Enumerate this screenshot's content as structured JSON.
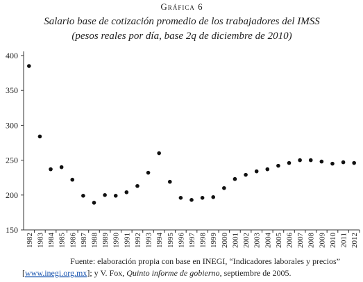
{
  "chart_data": {
    "type": "scatter",
    "label": "Gráfica 6",
    "title": "Salario base de cotización promedio de los trabajadores del IMSS",
    "subtitle": "(pesos reales por día, base 2q de diciembre de 2010)",
    "categories": [
      "1982",
      "1983",
      "1984",
      "1985",
      "1986",
      "1987",
      "1988",
      "1989",
      "1990",
      "1991",
      "1992",
      "1993",
      "1994",
      "1995",
      "1996",
      "1997",
      "1998",
      "1999",
      "2000",
      "2001",
      "2002",
      "2003",
      "2004",
      "2005",
      "2006",
      "2007",
      "2008",
      "2009",
      "2010",
      "2011",
      "2012"
    ],
    "values": [
      385,
      284,
      237,
      240,
      222,
      199,
      189,
      200,
      199,
      204,
      213,
      232,
      260,
      219,
      196,
      193,
      196,
      197,
      210,
      223,
      229,
      234,
      237,
      242,
      246,
      250,
      250,
      248,
      245,
      247,
      246
    ],
    "color": "#111111",
    "ylim": [
      150,
      400
    ],
    "yticks": [
      150,
      200,
      250,
      300,
      350,
      400
    ],
    "source": {
      "line1": "Fuente: elaboración propia con base en INEGI, “Indicadores laborales y precios”",
      "open": "[",
      "link": "www.inegi.org.mx",
      "rest": "]; y V. Fox, ",
      "book": "Quinto informe de gobierno",
      "end": ", septiembre de 2005."
    }
  }
}
